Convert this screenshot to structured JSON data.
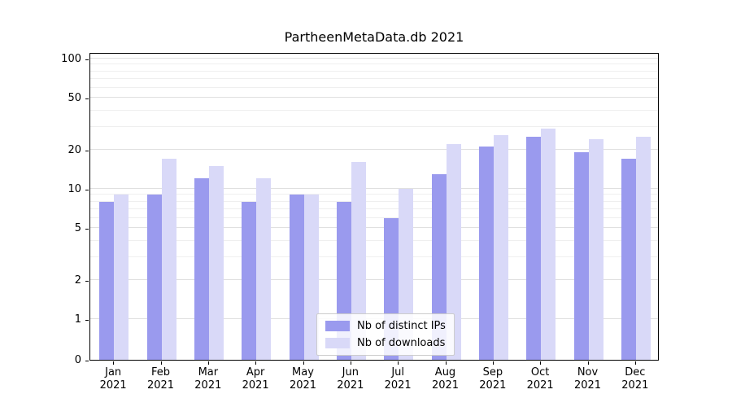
{
  "figure": {
    "title": "PartheenMetaData.db 2021"
  },
  "chart_data": {
    "type": "bar",
    "title": "PartheenMetaData.db 2021",
    "yscale": "symlog",
    "grid": true,
    "legend_position": "lower center",
    "background": "#ffffff",
    "categories": [
      "Jan",
      "Feb",
      "Mar",
      "Apr",
      "May",
      "Jun",
      "Jul",
      "Aug",
      "Sep",
      "Oct",
      "Nov",
      "Dec"
    ],
    "category_year": "2021",
    "xlabel": "",
    "ylabel": "",
    "y_ticks": [
      0,
      1,
      2,
      5,
      10,
      20,
      50,
      100
    ],
    "y_minor_ticks": [
      3,
      4,
      6,
      7,
      8,
      9,
      30,
      40,
      60,
      70,
      80,
      90
    ],
    "ylim": [
      0,
      115
    ],
    "series": [
      {
        "name": "Nb of distinct IPs",
        "color": "#9a9aee",
        "values": [
          8,
          9,
          12,
          8,
          9,
          8,
          6,
          13,
          21,
          25,
          19,
          17
        ]
      },
      {
        "name": "Nb of downloads",
        "color": "#d9d9f8",
        "values": [
          9,
          17,
          15,
          12,
          9,
          16,
          10,
          22,
          26,
          29,
          24,
          25
        ]
      }
    ]
  }
}
